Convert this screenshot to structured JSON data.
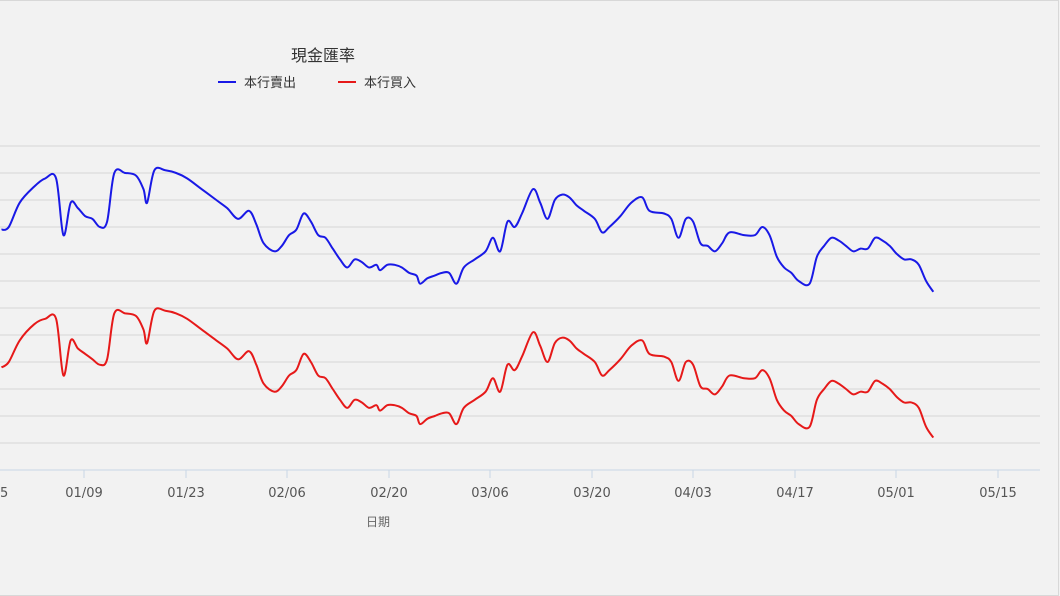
{
  "chart_data": {
    "type": "line",
    "title": "現金匯率",
    "xlabel": "日期",
    "ylabel": "",
    "x_tick_labels": [
      "01/09",
      "01/23",
      "02/06",
      "02/20",
      "03/06",
      "03/20",
      "04/03",
      "04/17",
      "05/01",
      "05/15"
    ],
    "first_tick_fragment": "5",
    "ylim": [
      0,
      12
    ],
    "grid": true,
    "legend": "top",
    "series": [
      {
        "name": "本行賣出",
        "color": "#1919e6",
        "points": [
          [
            0,
            8.9
          ],
          [
            2,
            9.0
          ],
          [
            5,
            9.9
          ],
          [
            9,
            10.5
          ],
          [
            12,
            10.8
          ],
          [
            15,
            10.8
          ],
          [
            17,
            8.7
          ],
          [
            19,
            9.9
          ],
          [
            21,
            9.7
          ],
          [
            23,
            9.4
          ],
          [
            25,
            9.3
          ],
          [
            27,
            9.0
          ],
          [
            29,
            9.2
          ],
          [
            31,
            11.0
          ],
          [
            34,
            11.0
          ],
          [
            37,
            10.9
          ],
          [
            39,
            10.4
          ],
          [
            40,
            9.9
          ],
          [
            42,
            11.1
          ],
          [
            45,
            11.1
          ],
          [
            48,
            11.0
          ],
          [
            51,
            10.8
          ],
          [
            55,
            10.4
          ],
          [
            59,
            10.0
          ],
          [
            62,
            9.7
          ],
          [
            65,
            9.3
          ],
          [
            68,
            9.6
          ],
          [
            70,
            9.1
          ],
          [
            72,
            8.4
          ],
          [
            75,
            8.1
          ],
          [
            77,
            8.3
          ],
          [
            79,
            8.7
          ],
          [
            81,
            8.9
          ],
          [
            83,
            9.5
          ],
          [
            85,
            9.2
          ],
          [
            87,
            8.7
          ],
          [
            89,
            8.6
          ],
          [
            91,
            8.2
          ],
          [
            93,
            7.8
          ],
          [
            95,
            7.5
          ],
          [
            97,
            7.8
          ],
          [
            99,
            7.7
          ],
          [
            101,
            7.5
          ],
          [
            103,
            7.6
          ],
          [
            104,
            7.4
          ],
          [
            106,
            7.6
          ],
          [
            108,
            7.6
          ],
          [
            110,
            7.5
          ],
          [
            112,
            7.3
          ],
          [
            114,
            7.2
          ],
          [
            115,
            6.9
          ],
          [
            117,
            7.1
          ],
          [
            119,
            7.2
          ],
          [
            121,
            7.3
          ],
          [
            123,
            7.3
          ],
          [
            125,
            6.9
          ],
          [
            127,
            7.5
          ],
          [
            130,
            7.8
          ],
          [
            133,
            8.1
          ],
          [
            135,
            8.6
          ],
          [
            137,
            8.1
          ],
          [
            139,
            9.2
          ],
          [
            141,
            9.0
          ],
          [
            143,
            9.5
          ],
          [
            146,
            10.4
          ],
          [
            148,
            9.9
          ],
          [
            150,
            9.3
          ],
          [
            152,
            10.0
          ],
          [
            154,
            10.2
          ],
          [
            156,
            10.1
          ],
          [
            158,
            9.8
          ],
          [
            160,
            9.6
          ],
          [
            163,
            9.3
          ],
          [
            165,
            8.8
          ],
          [
            167,
            9.0
          ],
          [
            170,
            9.4
          ],
          [
            173,
            9.9
          ],
          [
            176,
            10.1
          ],
          [
            178,
            9.6
          ],
          [
            182,
            9.5
          ],
          [
            184,
            9.3
          ],
          [
            186,
            8.6
          ],
          [
            188,
            9.3
          ],
          [
            190,
            9.2
          ],
          [
            192,
            8.4
          ],
          [
            194,
            8.3
          ],
          [
            196,
            8.1
          ],
          [
            198,
            8.4
          ],
          [
            200,
            8.8
          ],
          [
            204,
            8.7
          ],
          [
            207,
            8.7
          ],
          [
            209,
            9.0
          ],
          [
            211,
            8.7
          ],
          [
            213,
            7.9
          ],
          [
            215,
            7.5
          ],
          [
            217,
            7.3
          ],
          [
            219,
            7.0
          ],
          [
            222,
            6.9
          ],
          [
            224,
            7.9
          ],
          [
            226,
            8.3
          ],
          [
            228,
            8.6
          ],
          [
            230,
            8.5
          ],
          [
            232,
            8.3
          ],
          [
            234,
            8.1
          ],
          [
            236,
            8.2
          ],
          [
            238,
            8.2
          ],
          [
            240,
            8.6
          ],
          [
            242,
            8.5
          ],
          [
            244,
            8.3
          ],
          [
            246,
            8.0
          ],
          [
            248,
            7.8
          ],
          [
            250,
            7.8
          ],
          [
            252,
            7.6
          ],
          [
            254,
            7.0
          ],
          [
            256,
            6.6
          ]
        ]
      },
      {
        "name": "本行買入",
        "color": "#e61919",
        "points": [
          [
            0,
            3.8
          ],
          [
            2,
            4.0
          ],
          [
            5,
            4.8
          ],
          [
            9,
            5.4
          ],
          [
            12,
            5.6
          ],
          [
            15,
            5.6
          ],
          [
            17,
            3.5
          ],
          [
            19,
            4.8
          ],
          [
            21,
            4.5
          ],
          [
            23,
            4.3
          ],
          [
            25,
            4.1
          ],
          [
            27,
            3.9
          ],
          [
            29,
            4.1
          ],
          [
            31,
            5.8
          ],
          [
            34,
            5.8
          ],
          [
            37,
            5.7
          ],
          [
            39,
            5.2
          ],
          [
            40,
            4.7
          ],
          [
            42,
            5.9
          ],
          [
            45,
            5.9
          ],
          [
            48,
            5.8
          ],
          [
            51,
            5.6
          ],
          [
            55,
            5.2
          ],
          [
            59,
            4.8
          ],
          [
            62,
            4.5
          ],
          [
            65,
            4.1
          ],
          [
            68,
            4.4
          ],
          [
            70,
            3.9
          ],
          [
            72,
            3.2
          ],
          [
            75,
            2.9
          ],
          [
            77,
            3.1
          ],
          [
            79,
            3.5
          ],
          [
            81,
            3.7
          ],
          [
            83,
            4.3
          ],
          [
            85,
            4.0
          ],
          [
            87,
            3.5
          ],
          [
            89,
            3.4
          ],
          [
            91,
            3.0
          ],
          [
            93,
            2.6
          ],
          [
            95,
            2.3
          ],
          [
            97,
            2.6
          ],
          [
            99,
            2.5
          ],
          [
            101,
            2.3
          ],
          [
            103,
            2.4
          ],
          [
            104,
            2.2
          ],
          [
            106,
            2.4
          ],
          [
            108,
            2.4
          ],
          [
            110,
            2.3
          ],
          [
            112,
            2.1
          ],
          [
            114,
            2.0
          ],
          [
            115,
            1.7
          ],
          [
            117,
            1.9
          ],
          [
            119,
            2.0
          ],
          [
            121,
            2.1
          ],
          [
            123,
            2.1
          ],
          [
            125,
            1.7
          ],
          [
            127,
            2.3
          ],
          [
            130,
            2.6
          ],
          [
            133,
            2.9
          ],
          [
            135,
            3.4
          ],
          [
            137,
            2.9
          ],
          [
            139,
            3.9
          ],
          [
            141,
            3.7
          ],
          [
            143,
            4.2
          ],
          [
            146,
            5.1
          ],
          [
            148,
            4.6
          ],
          [
            150,
            4.0
          ],
          [
            152,
            4.7
          ],
          [
            154,
            4.9
          ],
          [
            156,
            4.8
          ],
          [
            158,
            4.5
          ],
          [
            160,
            4.3
          ],
          [
            163,
            4.0
          ],
          [
            165,
            3.5
          ],
          [
            167,
            3.7
          ],
          [
            170,
            4.1
          ],
          [
            173,
            4.6
          ],
          [
            176,
            4.8
          ],
          [
            178,
            4.3
          ],
          [
            182,
            4.2
          ],
          [
            184,
            4.0
          ],
          [
            186,
            3.3
          ],
          [
            188,
            4.0
          ],
          [
            190,
            3.9
          ],
          [
            192,
            3.1
          ],
          [
            194,
            3.0
          ],
          [
            196,
            2.8
          ],
          [
            198,
            3.1
          ],
          [
            200,
            3.5
          ],
          [
            204,
            3.4
          ],
          [
            207,
            3.4
          ],
          [
            209,
            3.7
          ],
          [
            211,
            3.4
          ],
          [
            213,
            2.6
          ],
          [
            215,
            2.2
          ],
          [
            217,
            2.0
          ],
          [
            219,
            1.7
          ],
          [
            222,
            1.6
          ],
          [
            224,
            2.6
          ],
          [
            226,
            3.0
          ],
          [
            228,
            3.3
          ],
          [
            230,
            3.2
          ],
          [
            232,
            3.0
          ],
          [
            234,
            2.8
          ],
          [
            236,
            2.9
          ],
          [
            238,
            2.9
          ],
          [
            240,
            3.3
          ],
          [
            242,
            3.2
          ],
          [
            244,
            3.0
          ],
          [
            246,
            2.7
          ],
          [
            248,
            2.5
          ],
          [
            250,
            2.5
          ],
          [
            252,
            2.3
          ],
          [
            254,
            1.6
          ],
          [
            256,
            1.2
          ]
        ]
      }
    ]
  }
}
